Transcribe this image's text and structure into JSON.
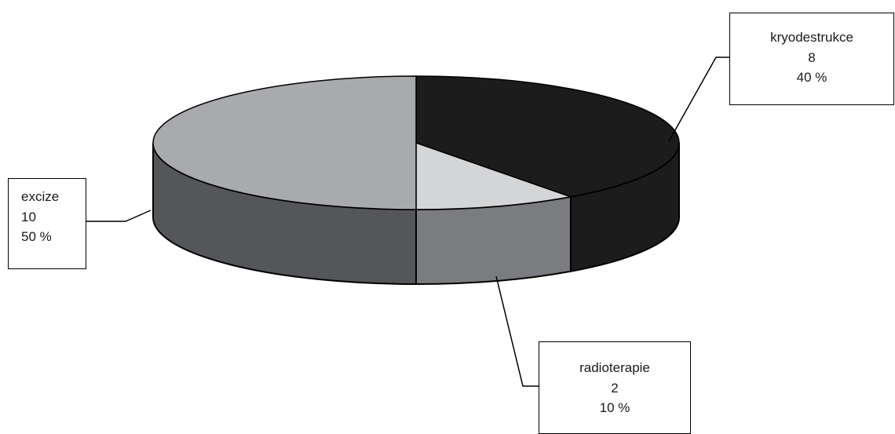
{
  "chart_data": {
    "type": "pie",
    "style": "3d",
    "title": "",
    "slices": [
      {
        "label": "kryodestrukce",
        "value": 8,
        "percent": "40 %",
        "color_top": "#1c1c1c",
        "color_side": "#1c1c1c"
      },
      {
        "label": "radioterapie",
        "value": 2,
        "percent": "10 %",
        "color_top": "#d4d5d7",
        "color_side": "#7b7c7f"
      },
      {
        "label": "excize",
        "value": 10,
        "percent": "50 %",
        "color_top": "#a9aaad",
        "color_side": "#55565a"
      }
    ],
    "legend": "none",
    "data_labels": "callout boxes"
  }
}
